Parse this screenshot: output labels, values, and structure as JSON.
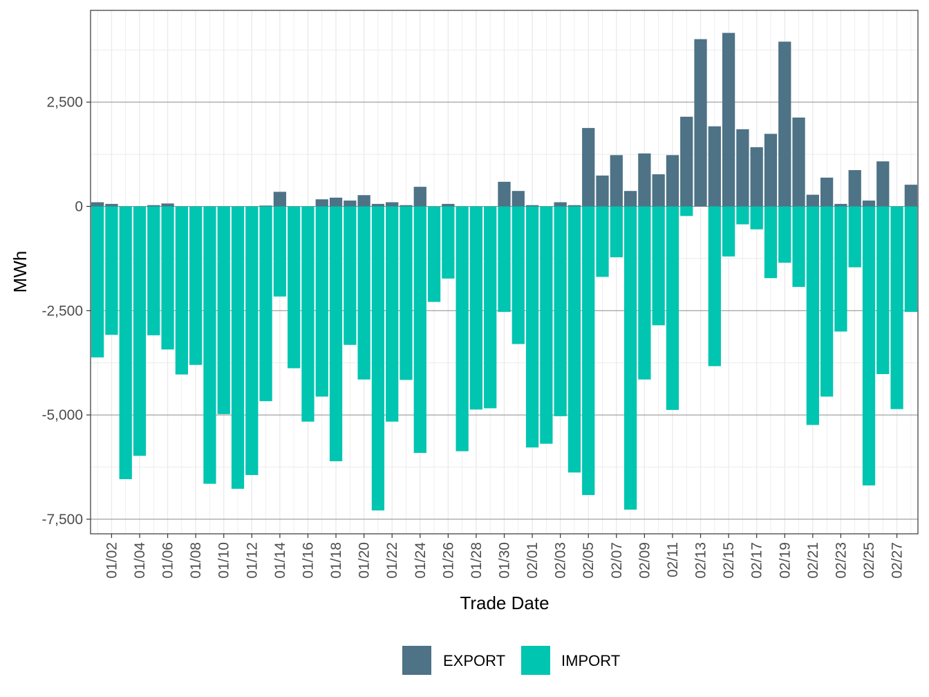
{
  "chart_data": {
    "type": "bar",
    "stacked": "diverging",
    "title": "",
    "xlabel": "Trade Date",
    "ylabel": "MWh",
    "ylim": [
      -7850,
      4700
    ],
    "yticks": [
      -7500,
      -5000,
      -2500,
      0,
      2500
    ],
    "ytick_labels": [
      "-7,500",
      "-5,000",
      "-2,500",
      "0",
      "2,500"
    ],
    "categories": [
      "01/01",
      "01/02",
      "01/03",
      "01/04",
      "01/05",
      "01/06",
      "01/07",
      "01/08",
      "01/09",
      "01/10",
      "01/11",
      "01/12",
      "01/13",
      "01/14",
      "01/15",
      "01/16",
      "01/17",
      "01/18",
      "01/19",
      "01/20",
      "01/21",
      "01/22",
      "01/23",
      "01/24",
      "01/25",
      "01/26",
      "01/27",
      "01/28",
      "01/29",
      "01/30",
      "01/31",
      "02/01",
      "02/02",
      "02/03",
      "02/04",
      "02/05",
      "02/06",
      "02/07",
      "02/08",
      "02/09",
      "02/10",
      "02/11",
      "02/12",
      "02/13",
      "02/14",
      "02/15",
      "02/16",
      "02/17",
      "02/18",
      "02/19",
      "02/20",
      "02/21",
      "02/22",
      "02/23",
      "02/24",
      "02/25",
      "02/26",
      "02/27",
      "02/28"
    ],
    "xtick_labels": [
      "01/02",
      "01/04",
      "01/06",
      "01/08",
      "01/10",
      "01/12",
      "01/14",
      "01/16",
      "01/18",
      "01/20",
      "01/22",
      "01/24",
      "01/26",
      "01/28",
      "01/30",
      "02/01",
      "02/03",
      "02/05",
      "02/07",
      "02/09",
      "02/11",
      "02/13",
      "02/15",
      "02/17",
      "02/19",
      "02/21",
      "02/23",
      "02/25",
      "02/27"
    ],
    "series": [
      {
        "name": "EXPORT",
        "color": "#4e7286",
        "values": [
          100,
          60,
          0,
          0,
          30,
          70,
          0,
          0,
          0,
          0,
          0,
          0,
          20,
          350,
          0,
          0,
          170,
          210,
          140,
          270,
          60,
          100,
          30,
          470,
          0,
          60,
          0,
          0,
          0,
          590,
          370,
          30,
          0,
          100,
          30,
          1880,
          740,
          1230,
          370,
          1270,
          770,
          1230,
          2150,
          4010,
          1920,
          4160,
          1850,
          1420,
          1740,
          3950,
          2130,
          280,
          690,
          60,
          870,
          140,
          1080,
          0,
          520
        ]
      },
      {
        "name": "IMPORT",
        "color": "#00c5b0",
        "values": [
          -3620,
          -3080,
          -6540,
          -5980,
          -3090,
          -3430,
          -4030,
          -3800,
          -6650,
          -4980,
          -6770,
          -6440,
          -4670,
          -2160,
          -3880,
          -5160,
          -4560,
          -6110,
          -3320,
          -4150,
          -7290,
          -5160,
          -4160,
          -5910,
          -2290,
          -1730,
          -5870,
          -4870,
          -4840,
          -2530,
          -3300,
          -5780,
          -5690,
          -5030,
          -6380,
          -6920,
          -1690,
          -1220,
          -7270,
          -4150,
          -2850,
          -4880,
          -230,
          0,
          -3830,
          -1200,
          -430,
          -550,
          -1720,
          -1350,
          -1930,
          -5240,
          -4560,
          -3000,
          -1460,
          -6690,
          -4020,
          -4860,
          -2530
        ]
      }
    ],
    "legend": [
      "EXPORT",
      "IMPORT"
    ],
    "legend_position": "bottom",
    "grid": true
  }
}
